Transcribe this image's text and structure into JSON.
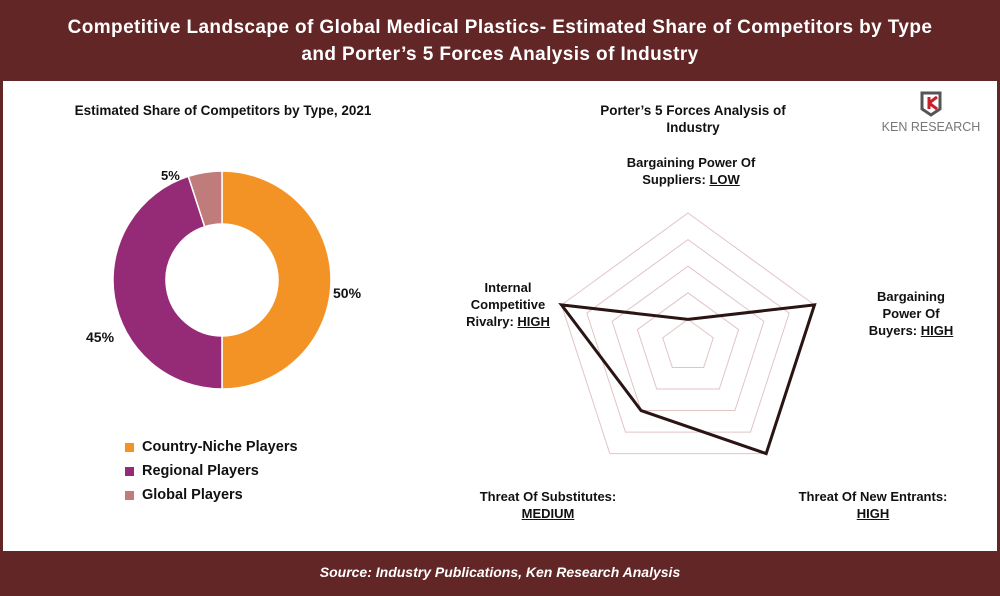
{
  "header": {
    "title_line1": "Competitive Landscape of Global Medical Plastics- Estimated Share of Competitors by Type",
    "title_line2": "and Porter’s 5 Forces Analysis of Industry"
  },
  "footer": {
    "source": "Source: Industry Publications, Ken Research Analysis"
  },
  "logo": {
    "text": "KEN RESEARCH"
  },
  "chart_data": [
    {
      "type": "pie",
      "title": "Estimated Share of Competitors by Type, 2021",
      "donut": true,
      "categories": [
        "Country-Niche Players",
        "Regional Players",
        "Global Players"
      ],
      "values": [
        50,
        45,
        5
      ],
      "labels": [
        "50%",
        "45%",
        "5%"
      ],
      "colors": [
        "#F39325",
        "#952A77",
        "#C07C7A"
      ],
      "legend": "bottom"
    },
    {
      "type": "radar",
      "title": "Porter’s 5 Forces Analysis of Industry",
      "axes": [
        {
          "label": "Bargaining Power Of Suppliers:",
          "rating": "LOW",
          "value": 1
        },
        {
          "label": "Bargaining Power Of Buyers:",
          "rating": "HIGH",
          "value": 5
        },
        {
          "label": "Threat Of New Entrants:",
          "rating": "HIGH",
          "value": 5
        },
        {
          "label": "Threat Of Substitutes:",
          "rating": "MEDIUM",
          "value": 3
        },
        {
          "label": "Internal Competitive Rivalry:",
          "rating": "HIGH",
          "value": 5
        }
      ],
      "range": [
        0,
        5
      ],
      "rings": 5,
      "line_color": "#2a1414",
      "grid_color": "#e2c4c4"
    }
  ]
}
